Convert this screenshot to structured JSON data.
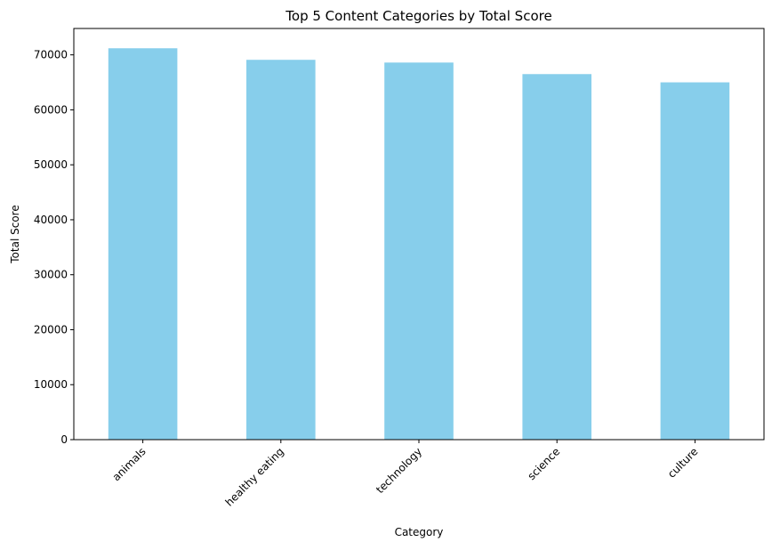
{
  "chart_data": {
    "type": "bar",
    "title": "Top 5 Content Categories by Total Score",
    "xlabel": "Category",
    "ylabel": "Total Score",
    "categories": [
      "animals",
      "healthy eating",
      "technology",
      "science",
      "culture"
    ],
    "values": [
      71200,
      69100,
      68600,
      66500,
      65000
    ],
    "ylim": [
      0,
      74800
    ],
    "yticks": [
      0,
      10000,
      20000,
      30000,
      40000,
      50000,
      60000,
      70000
    ],
    "ytick_labels": [
      "0",
      "10000",
      "20000",
      "30000",
      "40000",
      "50000",
      "60000",
      "70000"
    ],
    "bar_color": "#87CEEB",
    "grid": false,
    "legend": false,
    "xtick_rotation": 45
  }
}
